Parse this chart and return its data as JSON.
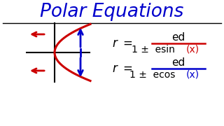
{
  "title": "Polar Equations",
  "title_color": "#0000cc",
  "bg_color": "#ffffff",
  "line_color": "#000000",
  "red_color": "#cc0000",
  "blue_color": "#0000cc",
  "formula1_num": "ed",
  "formula1_den_left": "1 ±  esin",
  "formula1_den_right": "(x)",
  "formula2_num": "ed",
  "formula2_den_left": "1 ±  ecos",
  "formula2_den_right": "(x)",
  "figsize": [
    3.2,
    1.8
  ],
  "dpi": 100
}
